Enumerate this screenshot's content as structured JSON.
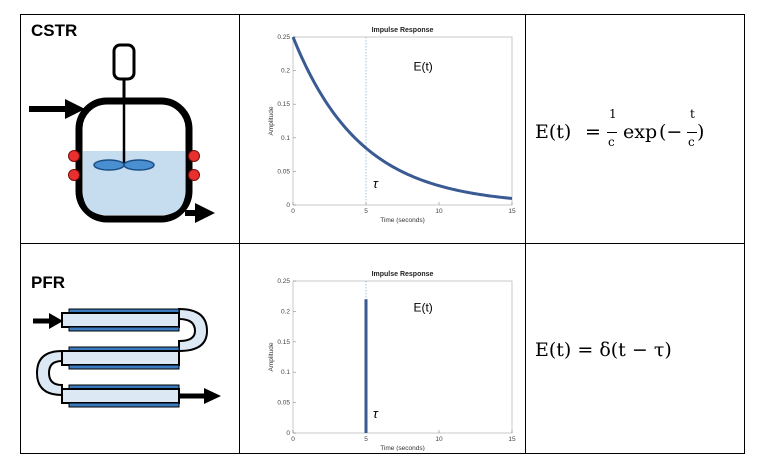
{
  "rows": [
    {
      "label": "CSTR",
      "equation": {
        "lhs": "E(t)",
        "eq": "=",
        "frac1_num": "1",
        "frac1_den": "c",
        "func": "exp",
        "open": "(−",
        "frac2_num": "t",
        "frac2_den": "c",
        "close": ")"
      }
    },
    {
      "label": "PFR",
      "equation": {
        "text": "E(t) = δ(t − τ)"
      }
    }
  ],
  "chart_data": [
    {
      "type": "line",
      "title": "Impulse Response",
      "xlabel": "Time (seconds)",
      "ylabel": "Amplitude",
      "xlim": [
        0,
        15
      ],
      "ylim": [
        0,
        0.25
      ],
      "xticks": [
        "0",
        "5",
        "10",
        "15"
      ],
      "yticks": [
        "0",
        "0.05",
        "0.1",
        "0.15",
        "0.2",
        "0.25"
      ],
      "annotation": "E(t)",
      "tau_label": "τ",
      "tau": 5,
      "series": [
        {
          "function": "exp_decay",
          "amplitude": 0.25,
          "time_constant": 4.62,
          "color": "#3a5a93"
        }
      ]
    },
    {
      "type": "line",
      "title": "Impulse Response",
      "xlabel": "Time (seconds)",
      "ylabel": "Amplitude",
      "xlim": [
        0,
        15
      ],
      "ylim": [
        0,
        0.25
      ],
      "xticks": [
        "0",
        "5",
        "10",
        "15"
      ],
      "yticks": [
        "0",
        "0.05",
        "0.1",
        "0.15",
        "0.2",
        "0.25"
      ],
      "annotation": "E(t)",
      "tau_label": "τ",
      "tau": 5,
      "series": [
        {
          "function": "impulse",
          "x": 5,
          "value": 0.22,
          "color": "#3a5a93"
        }
      ]
    }
  ],
  "colors": {
    "line": "#3a5a93",
    "liquid": "#c6dcef",
    "tube": "#dce8f4",
    "jacket": "#3a7bbf",
    "heater": "#e8312f"
  }
}
